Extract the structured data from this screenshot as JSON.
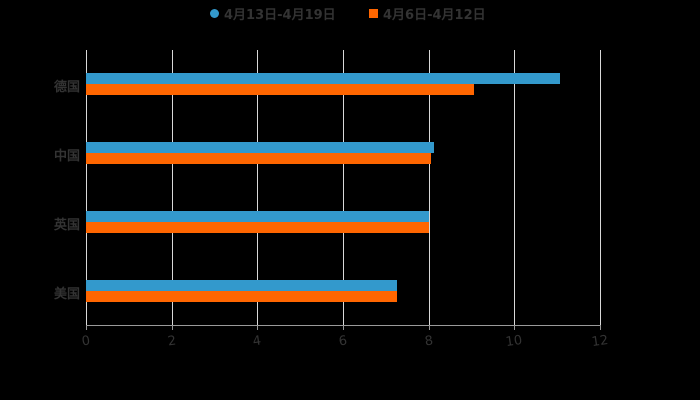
{
  "chart_data": {
    "type": "bar",
    "orientation": "horizontal",
    "title": "",
    "xlabel": "",
    "ylabel": "",
    "categories": [
      "德国",
      "中国",
      "英国",
      "美国"
    ],
    "series": [
      {
        "name": "4月13日-4月19日",
        "color": "#3399cc",
        "marker": "circle",
        "values": [
          11.07,
          8.13,
          8.01,
          7.26
        ]
      },
      {
        "name": "4月6日-4月12日",
        "color": "#ff6600",
        "marker": "square",
        "values": [
          9.06,
          8.06,
          8.01,
          7.26
        ]
      }
    ],
    "xlim": [
      0,
      12
    ],
    "xticks": [
      "0",
      "2",
      "4",
      "6",
      "8",
      "10",
      "12"
    ],
    "grid": true,
    "legend_position": "top"
  },
  "colors": {
    "background": "#000000",
    "series1": "#3399cc",
    "series2": "#ff6600",
    "text": "#333333",
    "grid": "#d9d9d9"
  }
}
